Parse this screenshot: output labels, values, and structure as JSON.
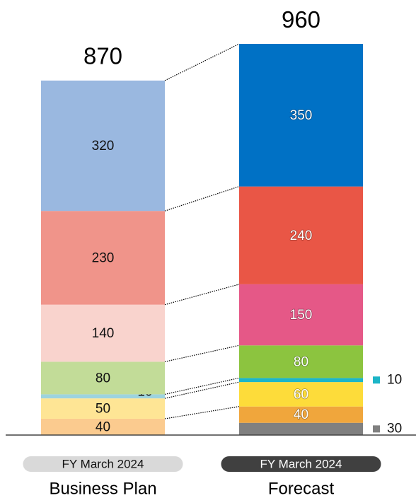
{
  "chart_data": {
    "type": "stacked_bar",
    "categories": [
      "Business Plan",
      "Forecast"
    ],
    "category_tags": [
      "FY March 2024",
      "FY March 2024"
    ],
    "totals": [
      870,
      960
    ],
    "series": [
      {
        "colors": [
          null,
          "#808080"
        ],
        "values": [
          null,
          30
        ]
      },
      {
        "colors": [
          "#fbcb8f",
          "#f0a63c"
        ],
        "values": [
          40,
          40
        ]
      },
      {
        "colors": [
          "#fee595",
          "#fddc3a"
        ],
        "values": [
          50,
          60
        ]
      },
      {
        "colors": [
          "#9dd3de",
          "#1cb5c7"
        ],
        "values": [
          10,
          10
        ]
      },
      {
        "colors": [
          "#c2dc98",
          "#8cc43f"
        ],
        "values": [
          80,
          80
        ]
      },
      {
        "colors": [
          "#f9d3cd",
          "#e55887"
        ],
        "values": [
          140,
          150
        ]
      },
      {
        "colors": [
          "#f0948a",
          "#e95646"
        ],
        "values": [
          230,
          240
        ]
      },
      {
        "colors": [
          "#9ab8e0",
          "#0071c5"
        ],
        "values": [
          320,
          350
        ]
      }
    ]
  }
}
